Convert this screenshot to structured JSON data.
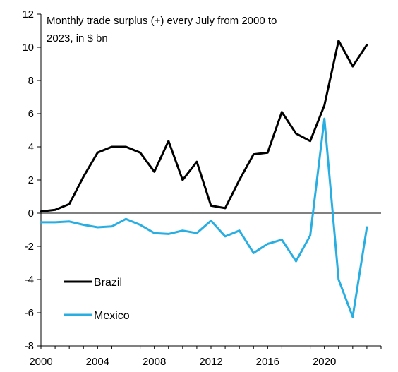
{
  "chart_data": {
    "type": "line",
    "title_line1": "Monthly trade surplus (+)  every July from 2000  to",
    "title_line2": "2023,  in $ bn",
    "xlabel": "",
    "ylabel": "",
    "ylim": [
      -8,
      12
    ],
    "xlim": [
      2000,
      2024
    ],
    "y_ticks": [
      -8,
      -6,
      -4,
      -2,
      0,
      2,
      4,
      6,
      8,
      10,
      12
    ],
    "x_ticks": [
      2000,
      2004,
      2008,
      2012,
      2016,
      2020
    ],
    "legend_position": "lower-left",
    "x": [
      2000,
      2001,
      2002,
      2003,
      2004,
      2005,
      2006,
      2007,
      2008,
      2009,
      2010,
      2011,
      2012,
      2013,
      2014,
      2015,
      2016,
      2017,
      2018,
      2019,
      2020,
      2021,
      2022,
      2023
    ],
    "series": [
      {
        "name": "Brazil",
        "color": "#000000",
        "values": [
          0.1,
          0.2,
          0.55,
          2.2,
          3.65,
          4.0,
          4.0,
          3.65,
          2.5,
          4.35,
          2.0,
          3.1,
          0.45,
          0.3,
          2.0,
          3.55,
          3.65,
          6.1,
          4.8,
          4.35,
          6.5,
          10.4,
          8.85,
          10.15
        ]
      },
      {
        "name": "Mexico",
        "color": "#29aee2",
        "values": [
          -0.55,
          -0.55,
          -0.5,
          -0.7,
          -0.85,
          -0.8,
          -0.35,
          -0.7,
          -1.2,
          -1.25,
          -1.05,
          -1.2,
          -0.45,
          -1.4,
          -1.05,
          -2.4,
          -1.85,
          -1.6,
          -2.9,
          -1.35,
          5.7,
          -4.0,
          -6.25,
          -0.85
        ]
      }
    ]
  }
}
